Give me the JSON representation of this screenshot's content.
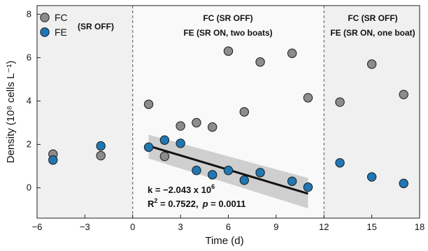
{
  "chart_data": {
    "type": "scatter",
    "xlabel": "Time (d)",
    "ylabel": "Density (10⁸ cells L⁻¹)",
    "xlim": [
      -6,
      18
    ],
    "ylim": [
      -1.4,
      8.4
    ],
    "xticks": [
      -6,
      -3,
      0,
      3,
      6,
      9,
      12,
      15,
      18
    ],
    "yticks": [
      0,
      2,
      4,
      6,
      8
    ],
    "phase_boundaries": [
      0,
      12
    ],
    "phases": [
      {
        "lines": [
          "(SR OFF)"
        ],
        "x_range": [
          -6,
          0
        ]
      },
      {
        "lines": [
          "FC (SR OFF)",
          "FE (SR ON, two boats)"
        ],
        "x_range": [
          0,
          12
        ]
      },
      {
        "lines": [
          "FC (SR OFF)",
          "FE (SR ON, one boat)"
        ],
        "x_range": [
          12,
          18
        ]
      }
    ],
    "series": [
      {
        "name": "FC",
        "color": "#8c8c8c",
        "points": [
          {
            "x": -5,
            "y": 1.55
          },
          {
            "x": -2,
            "y": 1.48
          },
          {
            "x": 1,
            "y": 3.85
          },
          {
            "x": 2,
            "y": 1.45
          },
          {
            "x": 3,
            "y": 2.85
          },
          {
            "x": 4,
            "y": 3.0
          },
          {
            "x": 5,
            "y": 2.8
          },
          {
            "x": 6,
            "y": 6.3
          },
          {
            "x": 7,
            "y": 3.5
          },
          {
            "x": 8,
            "y": 5.8
          },
          {
            "x": 10,
            "y": 6.2
          },
          {
            "x": 11,
            "y": 4.15
          },
          {
            "x": 13,
            "y": 3.95
          },
          {
            "x": 15,
            "y": 5.7
          },
          {
            "x": 17,
            "y": 4.3
          }
        ]
      },
      {
        "name": "FE",
        "color": "#1f77b4",
        "points": [
          {
            "x": -5,
            "y": 1.28
          },
          {
            "x": -2,
            "y": 1.93
          },
          {
            "x": 1,
            "y": 1.87
          },
          {
            "x": 2,
            "y": 2.2
          },
          {
            "x": 3,
            "y": 2.05
          },
          {
            "x": 4,
            "y": 0.8
          },
          {
            "x": 5,
            "y": 0.6
          },
          {
            "x": 6,
            "y": 0.8
          },
          {
            "x": 7,
            "y": 0.35
          },
          {
            "x": 8,
            "y": 0.7
          },
          {
            "x": 10,
            "y": 0.3
          },
          {
            "x": 11,
            "y": 0.03
          },
          {
            "x": 13,
            "y": 1.15
          },
          {
            "x": 15,
            "y": 0.5
          },
          {
            "x": 17,
            "y": 0.2
          }
        ]
      }
    ],
    "fit": {
      "x_range": [
        1,
        11
      ],
      "y_range": [
        1.93,
        -0.27
      ],
      "ci_upper": [
        2.45,
        0.45
      ],
      "ci_lower": [
        1.35,
        -0.95
      ],
      "k_label": "k = −2.043 x 10",
      "k_exp": "6",
      "r2_label": "R",
      "r2_sup": "2",
      "r2_value": " = 0.7522,",
      "p_symbol": "p",
      "p_value": " = 0.0011"
    },
    "legend": {
      "placement": "top-left",
      "entries": [
        "FC",
        "FE"
      ]
    }
  }
}
